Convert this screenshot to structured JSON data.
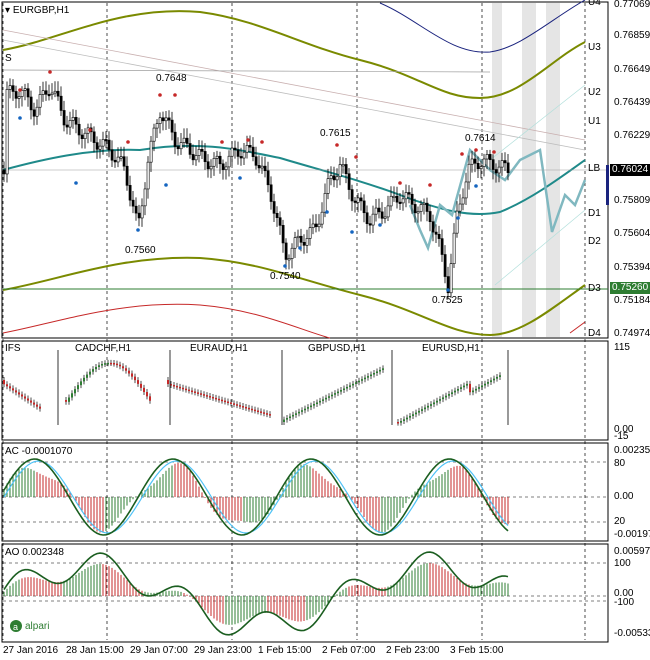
{
  "main": {
    "title": "EURGBP,H1",
    "s_marker": "S",
    "annotations": [
      "0.7648",
      "0.7615",
      "0.7614",
      "0.7560",
      "0.7540",
      "0.7525"
    ],
    "level_labels": [
      "U4",
      "U3",
      "U2",
      "U1",
      "LB",
      "D1",
      "D2",
      "D3",
      "D4"
    ],
    "price_axis": [
      "0.77069",
      "0.76859",
      "0.76649",
      "0.76439",
      "0.76229",
      "0.76024",
      "0.75809",
      "0.75604",
      "0.75394",
      "0.75260",
      "0.75184",
      "0.74974"
    ],
    "current_price": "0.76024",
    "line_price": "0.75260"
  },
  "ifs": {
    "title": "IFS",
    "pairs": [
      "CADCHF,H1",
      "EURAUD,H1",
      "GBPUSD,H1",
      "EURUSD,H1"
    ],
    "axis": [
      "115",
      "0.00",
      "-15"
    ]
  },
  "ac": {
    "title": "AC -0.0001070",
    "axis": [
      "0.0023545",
      "80",
      "0.00",
      "20",
      "-0.0019700"
    ]
  },
  "ao": {
    "title": "AO 0.002348",
    "axis": [
      "0.0059710",
      "100",
      "0.00",
      "-100",
      "-0.0053380"
    ]
  },
  "time_axis": [
    "27 Jan 2016",
    "28 Jan 15:00",
    "29 Jan 07:00",
    "29 Jan 23:00",
    "1 Feb 15:00",
    "2 Feb 07:00",
    "2 Feb 23:00",
    "3 Feb 15:00"
  ],
  "logo": "alpari",
  "colors": {
    "olive": "#7a8a00",
    "teal": "#1f8a8a",
    "navy": "#1a237e",
    "bull": "#2e7d32",
    "bear": "#c62828",
    "price_line": "#2e7d32"
  }
}
